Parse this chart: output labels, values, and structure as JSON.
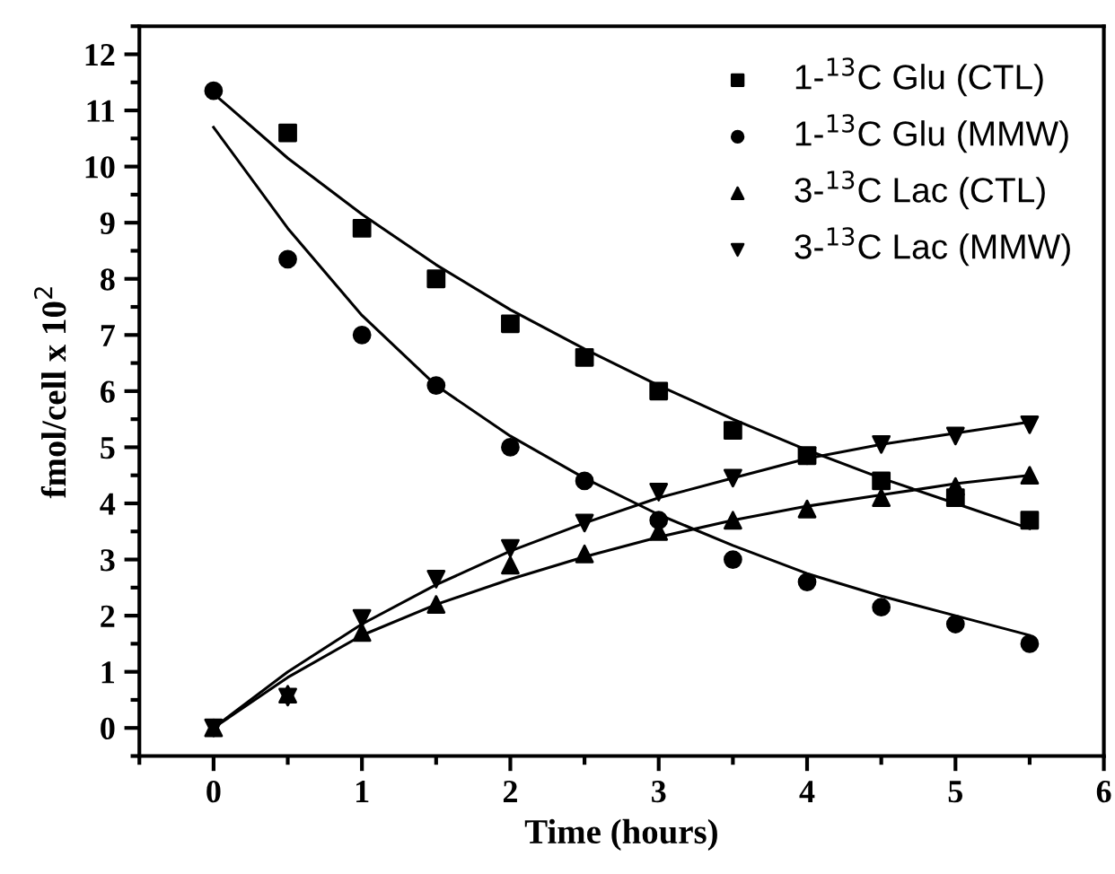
{
  "chart_data": {
    "type": "scatter",
    "xlabel": "Time (hours)",
    "ylabel": "fmol/cell x 10$^{2}$",
    "x": [
      0,
      0.5,
      1,
      1.5,
      2,
      2.5,
      3,
      3.5,
      4,
      4.5,
      5,
      5.5
    ],
    "series": [
      {
        "name": "1-$^{13}$C Glu (CTL)",
        "color": "#000000",
        "marker": "square",
        "values": [
          null,
          10.6,
          8.9,
          8.0,
          7.2,
          6.6,
          6.0,
          5.3,
          4.85,
          4.4,
          4.1,
          3.7
        ]
      },
      {
        "name": "1-$^{13}$C Glu (MMW)",
        "color": "#000000",
        "marker": "circle",
        "values": [
          11.35,
          8.35,
          7.0,
          6.1,
          5.0,
          4.4,
          3.7,
          3.0,
          2.6,
          2.15,
          1.85,
          1.5
        ]
      },
      {
        "name": "3-$^{13}$C Lac (CTL)",
        "color": "#000000",
        "marker": "triangle",
        "values": [
          0,
          0.6,
          1.7,
          2.2,
          2.9,
          3.1,
          3.5,
          3.7,
          3.9,
          4.1,
          4.3,
          4.5
        ]
      },
      {
        "name": "3-$^{13}$C Lac (MMW)",
        "color": "#000000",
        "marker": "triangle_down",
        "values": [
          0,
          0.55,
          1.95,
          2.65,
          3.2,
          3.65,
          4.2,
          4.45,
          4.85,
          5.05,
          5.2,
          5.4
        ]
      },
      {
        "type": "line",
        "color": "#000000",
        "marker": "none",
        "x": [
          0,
          0.5,
          1,
          1.5,
          2,
          2.5,
          3,
          3.5,
          4,
          4.5,
          5,
          5.5
        ],
        "values": [
          11.3,
          10.15,
          9.15,
          8.25,
          7.45,
          6.75,
          6.1,
          5.5,
          4.95,
          4.45,
          4.0,
          3.55
        ]
      },
      {
        "type": "line",
        "color": "#000000",
        "marker": "none",
        "x": [
          0,
          0.5,
          1,
          1.5,
          2,
          2.5,
          3,
          3.5,
          4,
          4.5,
          5,
          5.5
        ],
        "values": [
          10.7,
          8.9,
          7.35,
          6.1,
          5.2,
          4.45,
          3.8,
          3.25,
          2.75,
          2.35,
          2.0,
          1.65
        ]
      },
      {
        "type": "line",
        "color": "#000000",
        "marker": "none",
        "x": [
          0,
          0.5,
          1,
          1.5,
          2,
          2.5,
          3,
          3.5,
          4,
          4.5,
          5,
          5.5
        ],
        "values": [
          0,
          0.9,
          1.65,
          2.2,
          2.65,
          3.05,
          3.4,
          3.7,
          3.95,
          4.15,
          4.35,
          4.5
        ]
      },
      {
        "type": "line",
        "color": "#000000",
        "marker": "none",
        "x": [
          0,
          0.5,
          1,
          1.5,
          2,
          2.5,
          3,
          3.5,
          4,
          4.5,
          5,
          5.5
        ],
        "values": [
          0,
          1.0,
          1.85,
          2.55,
          3.15,
          3.65,
          4.1,
          4.45,
          4.8,
          5.05,
          5.25,
          5.45
        ]
      }
    ],
    "xlim": [
      -0.5,
      6
    ],
    "xticks": [
      0,
      1,
      2,
      3,
      4,
      5,
      6
    ],
    "ylim": [
      -0.5,
      12.5
    ],
    "yticks": [
      0,
      1,
      2,
      3,
      4,
      5,
      6,
      7,
      8,
      9,
      10,
      11,
      12
    ],
    "legend": "top right",
    "grid": false,
    "line_style": "solid"
  }
}
